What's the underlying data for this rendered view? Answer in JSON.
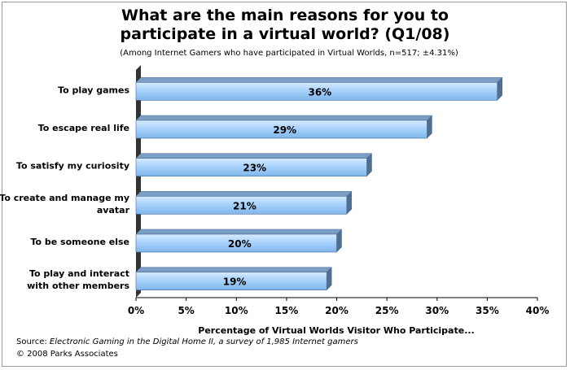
{
  "chart_data": {
    "type": "bar",
    "orientation": "horizontal",
    "title": "What are the main reasons for you to participate in a virtual world? (Q1/08)",
    "subtitle": "(Among Internet Gamers who have participated in Virtual Worlds, n=517; ±4.31%)",
    "categories": [
      "To play games",
      "To escape real life",
      "To satisfy my curiosity",
      "To create and manage my avatar",
      "To be someone else",
      "To play and interact with other members"
    ],
    "values": [
      36,
      29,
      23,
      21,
      20,
      19
    ],
    "data_labels": [
      "36%",
      "29%",
      "23%",
      "21%",
      "20%",
      "19%"
    ],
    "xlabel": "Percentage of Virtual Worlds Visitor Who Participate...",
    "xlim": [
      0,
      40
    ],
    "xticks": [
      "0%",
      "5%",
      "10%",
      "15%",
      "20%",
      "25%",
      "30%",
      "35%",
      "40%"
    ],
    "grid": false,
    "bar_color": "#9ecbf7",
    "bar_edge_color": "#4a6a8f",
    "wall_color": "#333333"
  },
  "footer": {
    "source_prefix": "Source:",
    "source_title": "Electronic Gaming in the Digital Home II, a survey of 1,985 Internet gamers",
    "copyright": "© 2008 Parks Associates"
  }
}
